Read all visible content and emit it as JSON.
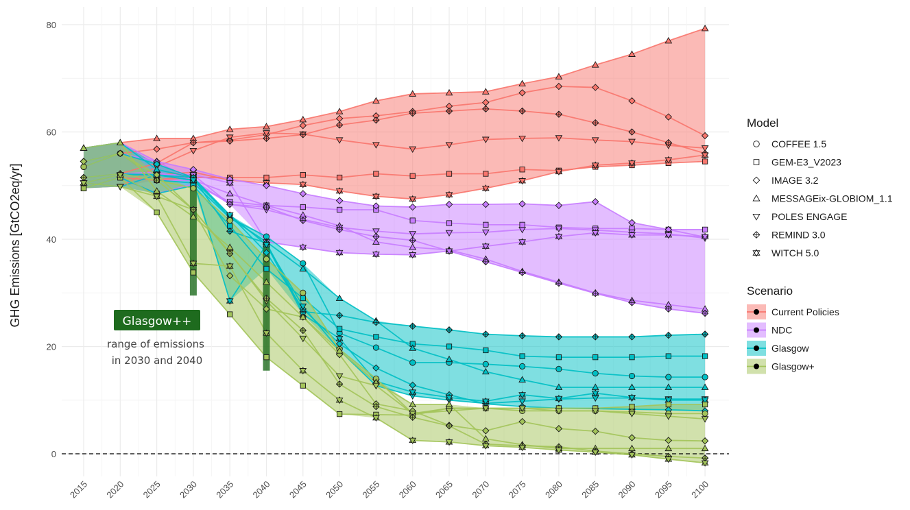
{
  "chart_data": {
    "type": "line",
    "ylabel": "GHG Emissions [GtCO2eq/yr]",
    "xlabel": "",
    "ylim": [
      -3,
      80
    ],
    "yticks": [
      0,
      20,
      40,
      60,
      80
    ],
    "grid": true,
    "x": [
      2015,
      2020,
      2025,
      2030,
      2035,
      2040,
      2045,
      2050,
      2055,
      2060,
      2065,
      2070,
      2075,
      2080,
      2085,
      2090,
      2095,
      2100
    ],
    "zero_line": true,
    "legend_position": "right",
    "legend": {
      "model_title": "Model",
      "models": [
        {
          "name": "COFFEE 1.5",
          "shape": "circle"
        },
        {
          "name": "GEM-E3_V2023",
          "shape": "square"
        },
        {
          "name": "IMAGE 3.2",
          "shape": "diamond"
        },
        {
          "name": "MESSAGEix-GLOBIOM_1.1",
          "shape": "triangle-up"
        },
        {
          "name": "POLES ENGAGE",
          "shape": "triangle-down"
        },
        {
          "name": "REMIND 3.0",
          "shape": "diamond-plus"
        },
        {
          "name": "WITCH 5.0",
          "shape": "star"
        }
      ],
      "scenario_title": "Scenario",
      "scenarios": [
        {
          "name": "Current Policies",
          "color": "#F8766D",
          "fill": "#F8766D"
        },
        {
          "name": "NDC",
          "color": "#C77CFF",
          "fill": "#C77CFF"
        },
        {
          "name": "Glasgow",
          "color": "#00BFC4",
          "fill": "#00BFC4"
        },
        {
          "name": "Glasgow+",
          "color": "#A3C45A",
          "fill": "#A3C45A"
        }
      ]
    },
    "annotation": {
      "box_label": "Glasgow++",
      "box_color": "#1E6B1E",
      "text_line1": "range of emissions",
      "text_line2": "in 2030 and 2040",
      "bars": [
        {
          "x": 2030,
          "y_min": 29.5,
          "y_max": 52.5
        },
        {
          "x": 2040,
          "y_min": 15.5,
          "y_max": 39.5
        }
      ]
    },
    "series": [
      {
        "scenario": "Current Policies",
        "model": "COFFEE 1.5",
        "values": [
          53.5,
          56,
          51,
          52,
          null,
          null,
          null,
          null,
          null,
          null,
          null,
          null,
          null,
          null,
          null,
          null,
          null,
          null
        ]
      },
      {
        "scenario": "Current Policies",
        "model": "GEM-E3_V2023",
        "values": [
          49.5,
          51.5,
          51,
          51.5,
          51.5,
          51.5,
          52,
          51.5,
          52.2,
          51.8,
          52.2,
          52.2,
          53,
          52.8,
          53.5,
          53.8,
          54.2,
          54.5
        ]
      },
      {
        "scenario": "Current Policies",
        "model": "IMAGE 3.2",
        "values": [
          54.5,
          56,
          56.8,
          58,
          58.5,
          59.5,
          61.2,
          62.5,
          63,
          63.8,
          64.8,
          65.5,
          67.3,
          68.5,
          68.3,
          65.8,
          62.8,
          59.3
        ]
      },
      {
        "scenario": "Current Policies",
        "model": "MESSAGEix-GLOBIOM_1.1",
        "values": [
          57,
          58,
          58.8,
          58.8,
          60.5,
          61,
          62.3,
          63.8,
          65.8,
          67.1,
          67.3,
          67.5,
          69,
          70.3,
          72.5,
          74.5,
          77,
          79.3
        ]
      },
      {
        "scenario": "Current Policies",
        "model": "POLES ENGAGE",
        "values": [
          50.5,
          49.8,
          53.5,
          56.5,
          59,
          59.8,
          59.6,
          58.5,
          57.6,
          56.8,
          57.6,
          58.6,
          58.8,
          58.9,
          58.5,
          58.2,
          57.5,
          57
        ]
      },
      {
        "scenario": "Current Policies",
        "model": "REMIND 3.0",
        "values": [
          51.5,
          52.2,
          54.2,
          58,
          58.3,
          58.8,
          59.5,
          61.3,
          62.2,
          63.5,
          63.9,
          64.3,
          63.9,
          63.3,
          61.7,
          60,
          58,
          56
        ]
      },
      {
        "scenario": "Current Policies",
        "model": "WITCH 5.0",
        "values": [
          50.5,
          52,
          52,
          52.5,
          51,
          50.5,
          50.2,
          49,
          48,
          47.5,
          48.3,
          49.5,
          50.9,
          52.6,
          53.8,
          54.2,
          54.8,
          55.7
        ]
      },
      {
        "scenario": "NDC",
        "model": "COFFEE 1.5",
        "values": [
          53.5,
          56,
          51,
          51,
          null,
          null,
          null,
          null,
          null,
          null,
          null,
          null,
          null,
          null,
          null,
          null,
          null,
          null
        ]
      },
      {
        "scenario": "NDC",
        "model": "GEM-E3_V2023",
        "values": [
          49.5,
          51.5,
          48.5,
          50.3,
          47,
          46.3,
          46,
          45.5,
          45.5,
          43.5,
          43,
          42.7,
          42.7,
          42.2,
          42,
          42,
          41.8,
          41.8
        ]
      },
      {
        "scenario": "NDC",
        "model": "IMAGE 3.2",
        "values": [
          54.5,
          56,
          54.5,
          53,
          51.2,
          50,
          48.5,
          47.2,
          46.2,
          46,
          46.5,
          46.5,
          46.6,
          46.3,
          47,
          43.1,
          41.8,
          40.4
        ]
      },
      {
        "scenario": "NDC",
        "model": "MESSAGEix-GLOBIOM_1.1",
        "values": [
          57,
          58,
          54.5,
          51,
          48.5,
          46.3,
          44.5,
          42.5,
          39.5,
          38.5,
          38,
          36.3,
          34,
          32,
          30,
          28.6,
          27.8,
          27
        ]
      },
      {
        "scenario": "NDC",
        "model": "POLES ENGAGE",
        "values": [
          50.5,
          49.8,
          52,
          52,
          46.5,
          45.5,
          43.7,
          42.2,
          41.5,
          41,
          41.2,
          41.3,
          41.8,
          42,
          41.7,
          41.3,
          41,
          40.2
        ]
      },
      {
        "scenario": "NDC",
        "model": "REMIND 3.0",
        "values": [
          51.5,
          52.2,
          52.5,
          51,
          46.5,
          46,
          43.5,
          41.8,
          40.5,
          39.8,
          37.8,
          35.8,
          33.8,
          31.8,
          29.9,
          28.2,
          27,
          26.2
        ]
      },
      {
        "scenario": "NDC",
        "model": "WITCH 5.0",
        "values": [
          50.5,
          52,
          52,
          52,
          50.5,
          39.5,
          38.5,
          37.5,
          37.2,
          37.1,
          37.8,
          38.7,
          39.5,
          40.5,
          41.2,
          40.8,
          40.8,
          40.5
        ]
      },
      {
        "scenario": "Glasgow",
        "model": "COFFEE 1.5",
        "values": [
          53.5,
          56,
          51,
          50.5,
          44,
          40.5,
          35.5,
          22.5,
          19.8,
          17,
          17,
          16.7,
          16.3,
          15.8,
          15,
          14.5,
          14.3,
          14.3
        ]
      },
      {
        "scenario": "Glasgow",
        "model": "GEM-E3_V2023",
        "values": [
          49.5,
          51.5,
          48.5,
          50,
          42.5,
          34.5,
          29,
          23.3,
          21.8,
          20.5,
          20,
          19.3,
          18.2,
          18,
          18,
          18,
          18.2,
          18.2
        ]
      },
      {
        "scenario": "Glasgow",
        "model": "IMAGE 3.2",
        "values": [
          54.5,
          56,
          54,
          51.5,
          44.5,
          37.5,
          27,
          20.5,
          16,
          12.8,
          11,
          9.3,
          8.8,
          8.5,
          8.4,
          8.3,
          8.2,
          8
        ]
      },
      {
        "scenario": "Glasgow",
        "model": "MESSAGEix-GLOBIOM_1.1",
        "values": [
          57,
          58,
          53,
          51.5,
          44,
          39.5,
          34.5,
          29,
          24.8,
          19.7,
          17.6,
          15.3,
          13.8,
          12.4,
          12.4,
          12.4,
          12.4,
          12.4
        ]
      },
      {
        "scenario": "Glasgow",
        "model": "POLES ENGAGE",
        "values": [
          50.5,
          49.8,
          52,
          51,
          44.5,
          39,
          27.5,
          19.3,
          12.7,
          10.8,
          10,
          9.4,
          9.8,
          10.2,
          10.4,
          10.4,
          10.2,
          10.2
        ]
      },
      {
        "scenario": "Glasgow",
        "model": "REMIND 3.0",
        "values": [
          51.5,
          52.2,
          52,
          51.5,
          41.5,
          39.3,
          26.5,
          25.8,
          24.5,
          23.8,
          23.1,
          22.3,
          22,
          21.8,
          21.8,
          21.8,
          22.1,
          22.3
        ]
      },
      {
        "scenario": "Glasgow",
        "model": "WITCH 5.0",
        "values": [
          50.5,
          52,
          52,
          51,
          28.5,
          39,
          26,
          21.5,
          13.5,
          11.5,
          10.5,
          9.8,
          11,
          10.3,
          11.3,
          10.5,
          10,
          10
        ]
      },
      {
        "scenario": "Glasgow+",
        "model": "COFFEE 1.5",
        "values": [
          53.5,
          56,
          51,
          49.5,
          43.5,
          36.3,
          30,
          19.5,
          14,
          7.5,
          8.5,
          8.5,
          8,
          8,
          8,
          7.8,
          7.5,
          7.5
        ]
      },
      {
        "scenario": "Glasgow+",
        "model": "GEM-E3_V2023",
        "values": [
          49.5,
          51.5,
          45,
          33.8,
          26,
          18,
          12.7,
          7.4,
          7.3,
          7.2,
          8.5,
          8.5,
          8.5,
          8.5,
          8.5,
          8.8,
          9.2,
          9.2
        ]
      },
      {
        "scenario": "Glasgow+",
        "model": "IMAGE 3.2",
        "values": [
          54.5,
          56,
          52,
          45.5,
          33.2,
          27,
          25.5,
          18.5,
          9.3,
          8,
          5.3,
          4.3,
          6,
          4.7,
          4.2,
          3,
          2.5,
          2.4
        ]
      },
      {
        "scenario": "Glasgow+",
        "model": "MESSAGEix-GLOBIOM_1.1",
        "values": [
          57,
          58,
          49,
          44.2,
          38.5,
          32,
          25.5,
          19.2,
          13.3,
          9.2,
          9.2,
          2.8,
          1.7,
          1,
          1,
          1,
          1,
          1
        ]
      },
      {
        "scenario": "Glasgow+",
        "model": "POLES ENGAGE",
        "values": [
          50.5,
          49.8,
          48,
          45.5,
          37.5,
          28.5,
          21.5,
          14.5,
          12.7,
          7.5,
          8,
          8.5,
          8.5,
          8,
          8,
          7.5,
          7,
          6.5
        ]
      },
      {
        "scenario": "Glasgow+",
        "model": "REMIND 3.0",
        "values": [
          51.5,
          52.2,
          51,
          45.5,
          37.3,
          29,
          23,
          13,
          8.8,
          6.8,
          5.2,
          1.8,
          1.5,
          1.3,
          0.5,
          0,
          -0.5,
          -0.8
        ]
      },
      {
        "scenario": "Glasgow+",
        "model": "WITCH 5.0",
        "values": [
          50.5,
          52,
          48,
          35.5,
          35,
          22.5,
          15.5,
          10,
          6.7,
          2.5,
          2.2,
          1.5,
          1.2,
          0.7,
          0.3,
          -0.2,
          -1,
          -1.7
        ]
      }
    ]
  }
}
